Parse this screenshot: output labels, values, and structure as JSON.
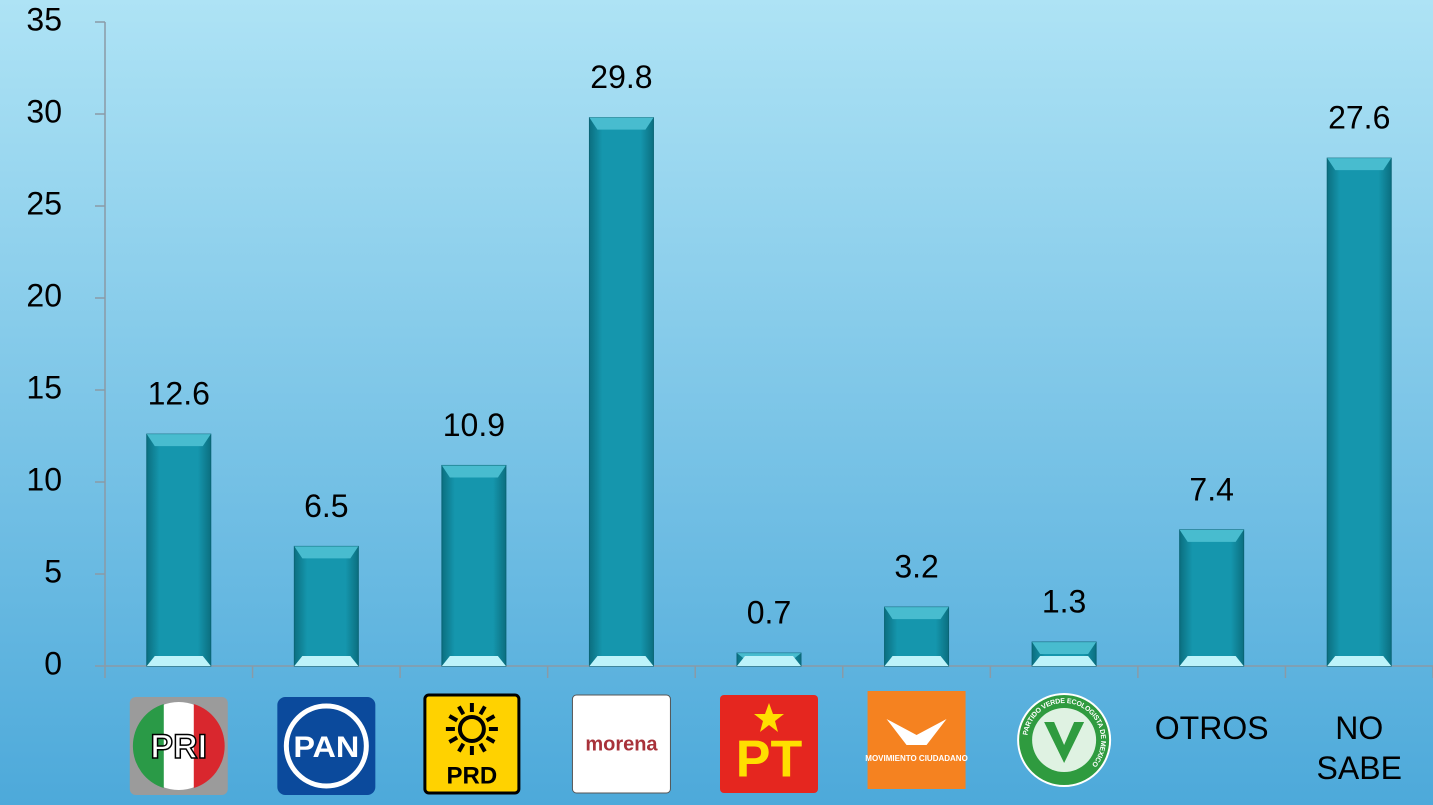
{
  "chart_data": {
    "type": "bar",
    "categories": [
      "PRI",
      "PAN",
      "PRD",
      "morena",
      "PT",
      "MOVIMIENTO CIUDADANO",
      "PARTIDO VERDE ECOLOGISTA DE MEXICO",
      "OTROS",
      "NO SABE"
    ],
    "values": [
      12.6,
      6.5,
      10.9,
      29.8,
      0.7,
      3.2,
      1.3,
      7.4,
      27.6
    ],
    "color": "#1596ad",
    "ylim": [
      0,
      35
    ],
    "yticks": [
      0,
      5,
      10,
      15,
      20,
      25,
      30,
      35
    ]
  }
}
